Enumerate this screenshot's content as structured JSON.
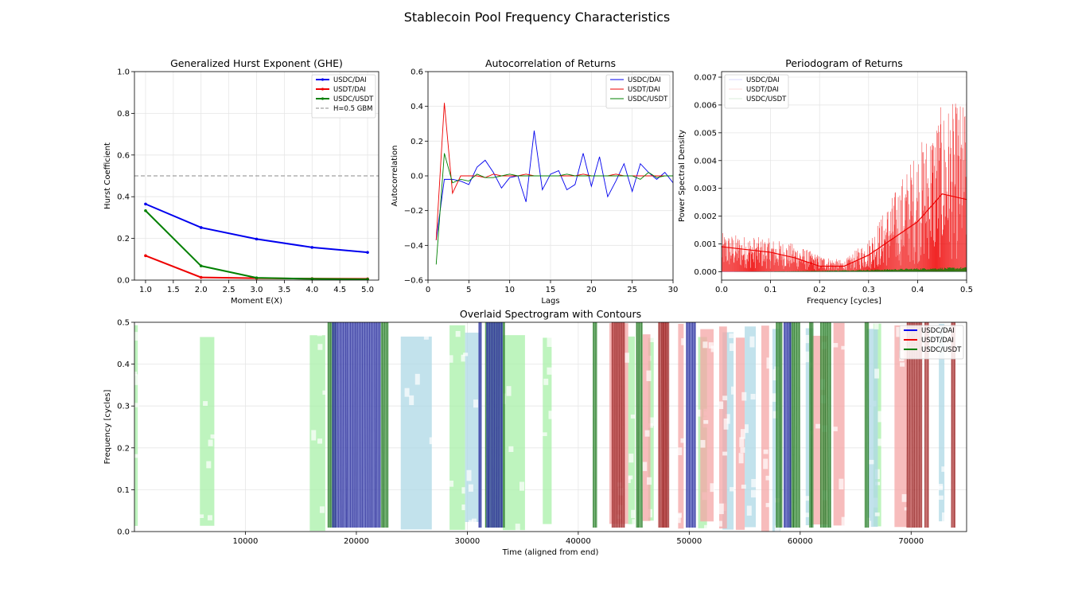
{
  "suptitle": "Stablecoin Pool Frequency Characteristics",
  "colors": {
    "USDC/DAI": "#0000ee",
    "USDT/DAI": "#ee0000",
    "USDC/USDT": "#008000",
    "ref": "#a0a0a0"
  },
  "chart_data": [
    {
      "type": "line",
      "title": "Generalized Hurst Exponent (GHE)",
      "xlabel": "Moment E(X)",
      "ylabel": "Hurst Coefficient",
      "xlim": [
        0.8,
        5.2
      ],
      "ylim": [
        0,
        1
      ],
      "xticks": [
        "1.0",
        "1.5",
        "2.0",
        "2.5",
        "3.0",
        "3.5",
        "4.0",
        "4.5",
        "5.0"
      ],
      "yticks": [
        "0.0",
        "0.2",
        "0.4",
        "0.6",
        "0.8",
        "1.0"
      ],
      "grid": true,
      "legend": "top-right",
      "x": [
        1,
        2,
        3,
        4,
        5
      ],
      "series": [
        {
          "name": "USDC/DAI",
          "values": [
            0.365,
            0.252,
            0.197,
            0.157,
            0.133
          ]
        },
        {
          "name": "USDT/DAI",
          "values": [
            0.117,
            0.013,
            0.009,
            0.007,
            0.006
          ]
        },
        {
          "name": "USDC/USDT",
          "values": [
            0.333,
            0.068,
            0.011,
            0.006,
            0.004
          ]
        }
      ],
      "reference": {
        "name": "H=0.5 GBM",
        "y": 0.5
      }
    },
    {
      "type": "line",
      "title": "Autocorrelation of Returns",
      "xlabel": "Lags",
      "ylabel": "Autocorrelation",
      "xlim": [
        0,
        30
      ],
      "ylim": [
        -0.6,
        0.6
      ],
      "xticks": [
        "0",
        "5",
        "10",
        "15",
        "20",
        "25",
        "30"
      ],
      "yticks": [
        "−0.6",
        "−0.4",
        "−0.2",
        "0.0",
        "0.2",
        "0.4",
        "0.6"
      ],
      "grid": true,
      "legend": "top-right",
      "x": [
        1,
        2,
        3,
        4,
        5,
        6,
        7,
        8,
        9,
        10,
        11,
        12,
        13,
        14,
        15,
        16,
        17,
        18,
        19,
        20,
        21,
        22,
        23,
        24,
        25,
        26,
        27,
        28,
        29,
        30
      ],
      "series": [
        {
          "name": "USDC/DAI",
          "values": [
            -0.37,
            -0.02,
            -0.02,
            -0.03,
            -0.05,
            0.05,
            0.09,
            0.02,
            -0.07,
            -0.01,
            0.0,
            -0.15,
            0.26,
            -0.08,
            0.01,
            0.03,
            -0.08,
            -0.05,
            0.13,
            -0.06,
            0.11,
            -0.12,
            -0.03,
            0.07,
            -0.09,
            0.07,
            0.02,
            -0.02,
            0.02,
            -0.04
          ]
        },
        {
          "name": "USDT/DAI",
          "values": [
            -0.37,
            0.42,
            -0.1,
            0.0,
            0.0,
            0.0,
            -0.01,
            0.01,
            0.0,
            0.0,
            0.0,
            0.01,
            0.0,
            0.0,
            0.0,
            0.0,
            0.0,
            0.0,
            0.01,
            0.0,
            0.0,
            0.0,
            0.01,
            0.0,
            0.0,
            0.0,
            0.0,
            0.0,
            0.0,
            0.0
          ]
        },
        {
          "name": "USDC/USDT",
          "values": [
            -0.51,
            0.13,
            -0.04,
            -0.02,
            -0.03,
            0.01,
            -0.01,
            -0.01,
            0.0,
            0.01,
            0.0,
            0.0,
            0.0,
            0.0,
            0.0,
            0.0,
            0.01,
            0.0,
            0.0,
            0.0,
            0.0,
            0.0,
            0.0,
            0.0,
            0.0,
            -0.02,
            0.02,
            -0.01,
            0.0,
            0.0
          ]
        }
      ]
    },
    {
      "type": "area",
      "title": "Periodogram of Returns",
      "xlabel": "Frequency [cycles]",
      "ylabel": "Power Spectral Density",
      "xlim": [
        0,
        0.5
      ],
      "ylim": [
        -0.0003,
        0.0072
      ],
      "xticks": [
        "0.0",
        "0.1",
        "0.2",
        "0.3",
        "0.4",
        "0.5"
      ],
      "yticks": [
        "0.000",
        "0.001",
        "0.002",
        "0.003",
        "0.004",
        "0.005",
        "0.006",
        "0.007"
      ],
      "grid": true,
      "legend": "top-left",
      "series": [
        {
          "name": "USDC/DAI",
          "x": [
            0,
            0.1,
            0.2,
            0.3,
            0.4,
            0.5
          ],
          "values": [
            0,
            0,
            0,
            0,
            0,
            0
          ]
        },
        {
          "name": "USDT/DAI",
          "x": [
            0,
            0.05,
            0.1,
            0.15,
            0.2,
            0.25,
            0.3,
            0.35,
            0.4,
            0.45,
            0.5
          ],
          "values": [
            0.0009,
            0.0008,
            0.0007,
            0.0005,
            0.0002,
            0.0002,
            0.0006,
            0.0012,
            0.0018,
            0.0028,
            0.0026
          ],
          "upper": [
            0.0014,
            0.0013,
            0.0012,
            0.001,
            0.0006,
            0.0004,
            0.0012,
            0.0028,
            0.0045,
            0.006,
            0.0062
          ]
        },
        {
          "name": "USDC/USDT",
          "x": [
            0,
            0.1,
            0.2,
            0.3,
            0.4,
            0.5
          ],
          "values": [
            0.0,
            1e-05,
            3e-05,
            6e-05,
            0.0001,
            0.00013
          ]
        }
      ]
    },
    {
      "type": "heatmap",
      "title": "Overlaid Spectrogram with Contours",
      "xlabel": "Time (aligned from end)",
      "ylabel": "Frequency [cycles]",
      "xlim": [
        0,
        75000
      ],
      "ylim": [
        0,
        0.5
      ],
      "xticks": [
        "10000",
        "20000",
        "30000",
        "40000",
        "50000",
        "60000",
        "70000"
      ],
      "yticks": [
        "0.0",
        "0.1",
        "0.2",
        "0.3",
        "0.4",
        "0.5"
      ],
      "grid": true,
      "legend": "top-right",
      "series": [
        {
          "name": "USDC/DAI",
          "bands": [
            [
              17800,
              22200,
              "dark"
            ],
            [
              24000,
              26800,
              "light"
            ],
            [
              29800,
              31200,
              "light"
            ],
            [
              31000,
              31300,
              "dark"
            ],
            [
              31700,
              33200,
              "dark"
            ],
            [
              49700,
              50600,
              "dark"
            ],
            [
              53000,
              54000,
              "light"
            ],
            [
              55000,
              56000,
              "light"
            ],
            [
              57500,
              58200,
              "light"
            ],
            [
              58500,
              59200,
              "dark"
            ],
            [
              60500,
              61200,
              "light"
            ],
            [
              66000,
              67000,
              "light"
            ],
            [
              72500,
              73000,
              "light"
            ]
          ]
        },
        {
          "name": "USDT/DAI",
          "bands": [
            [
              42800,
              44500,
              "light"
            ],
            [
              43000,
              44200,
              "dark"
            ],
            [
              45800,
              46500,
              "light"
            ],
            [
              47200,
              48200,
              "dark"
            ],
            [
              47500,
              48000,
              "dark"
            ],
            [
              49000,
              49500,
              "light"
            ],
            [
              51000,
              52200,
              "light"
            ],
            [
              52700,
              53400,
              "light"
            ],
            [
              54200,
              55000,
              "light"
            ],
            [
              56500,
              57200,
              "light"
            ],
            [
              61000,
              62500,
              "light"
            ],
            [
              63000,
              64000,
              "light"
            ],
            [
              68500,
              69700,
              "light"
            ],
            [
              69600,
              71000,
              "dark"
            ],
            [
              71200,
              71600,
              "dark"
            ],
            [
              73600,
              74000,
              "dark"
            ]
          ]
        },
        {
          "name": "USDC/USDT",
          "bands": [
            [
              0,
              300,
              "light"
            ],
            [
              5900,
              7200,
              "light"
            ],
            [
              15800,
              17200,
              "light"
            ],
            [
              17400,
              18200,
              "dark"
            ],
            [
              22200,
              22900,
              "dark"
            ],
            [
              28400,
              29800,
              "light"
            ],
            [
              31600,
              33400,
              "dark"
            ],
            [
              33200,
              35200,
              "light"
            ],
            [
              36800,
              37600,
              "light"
            ],
            [
              41300,
              41700,
              "dark"
            ],
            [
              44500,
              45100,
              "light"
            ],
            [
              45200,
              45800,
              "dark"
            ],
            [
              46300,
              46800,
              "light"
            ],
            [
              50800,
              51600,
              "light"
            ],
            [
              57800,
              58400,
              "dark"
            ],
            [
              59000,
              60000,
              "dark"
            ],
            [
              60800,
              61200,
              "dark"
            ],
            [
              61800,
              62800,
              "dark"
            ],
            [
              65800,
              66200,
              "dark"
            ],
            [
              66600,
              67300,
              "light"
            ]
          ]
        }
      ]
    }
  ]
}
